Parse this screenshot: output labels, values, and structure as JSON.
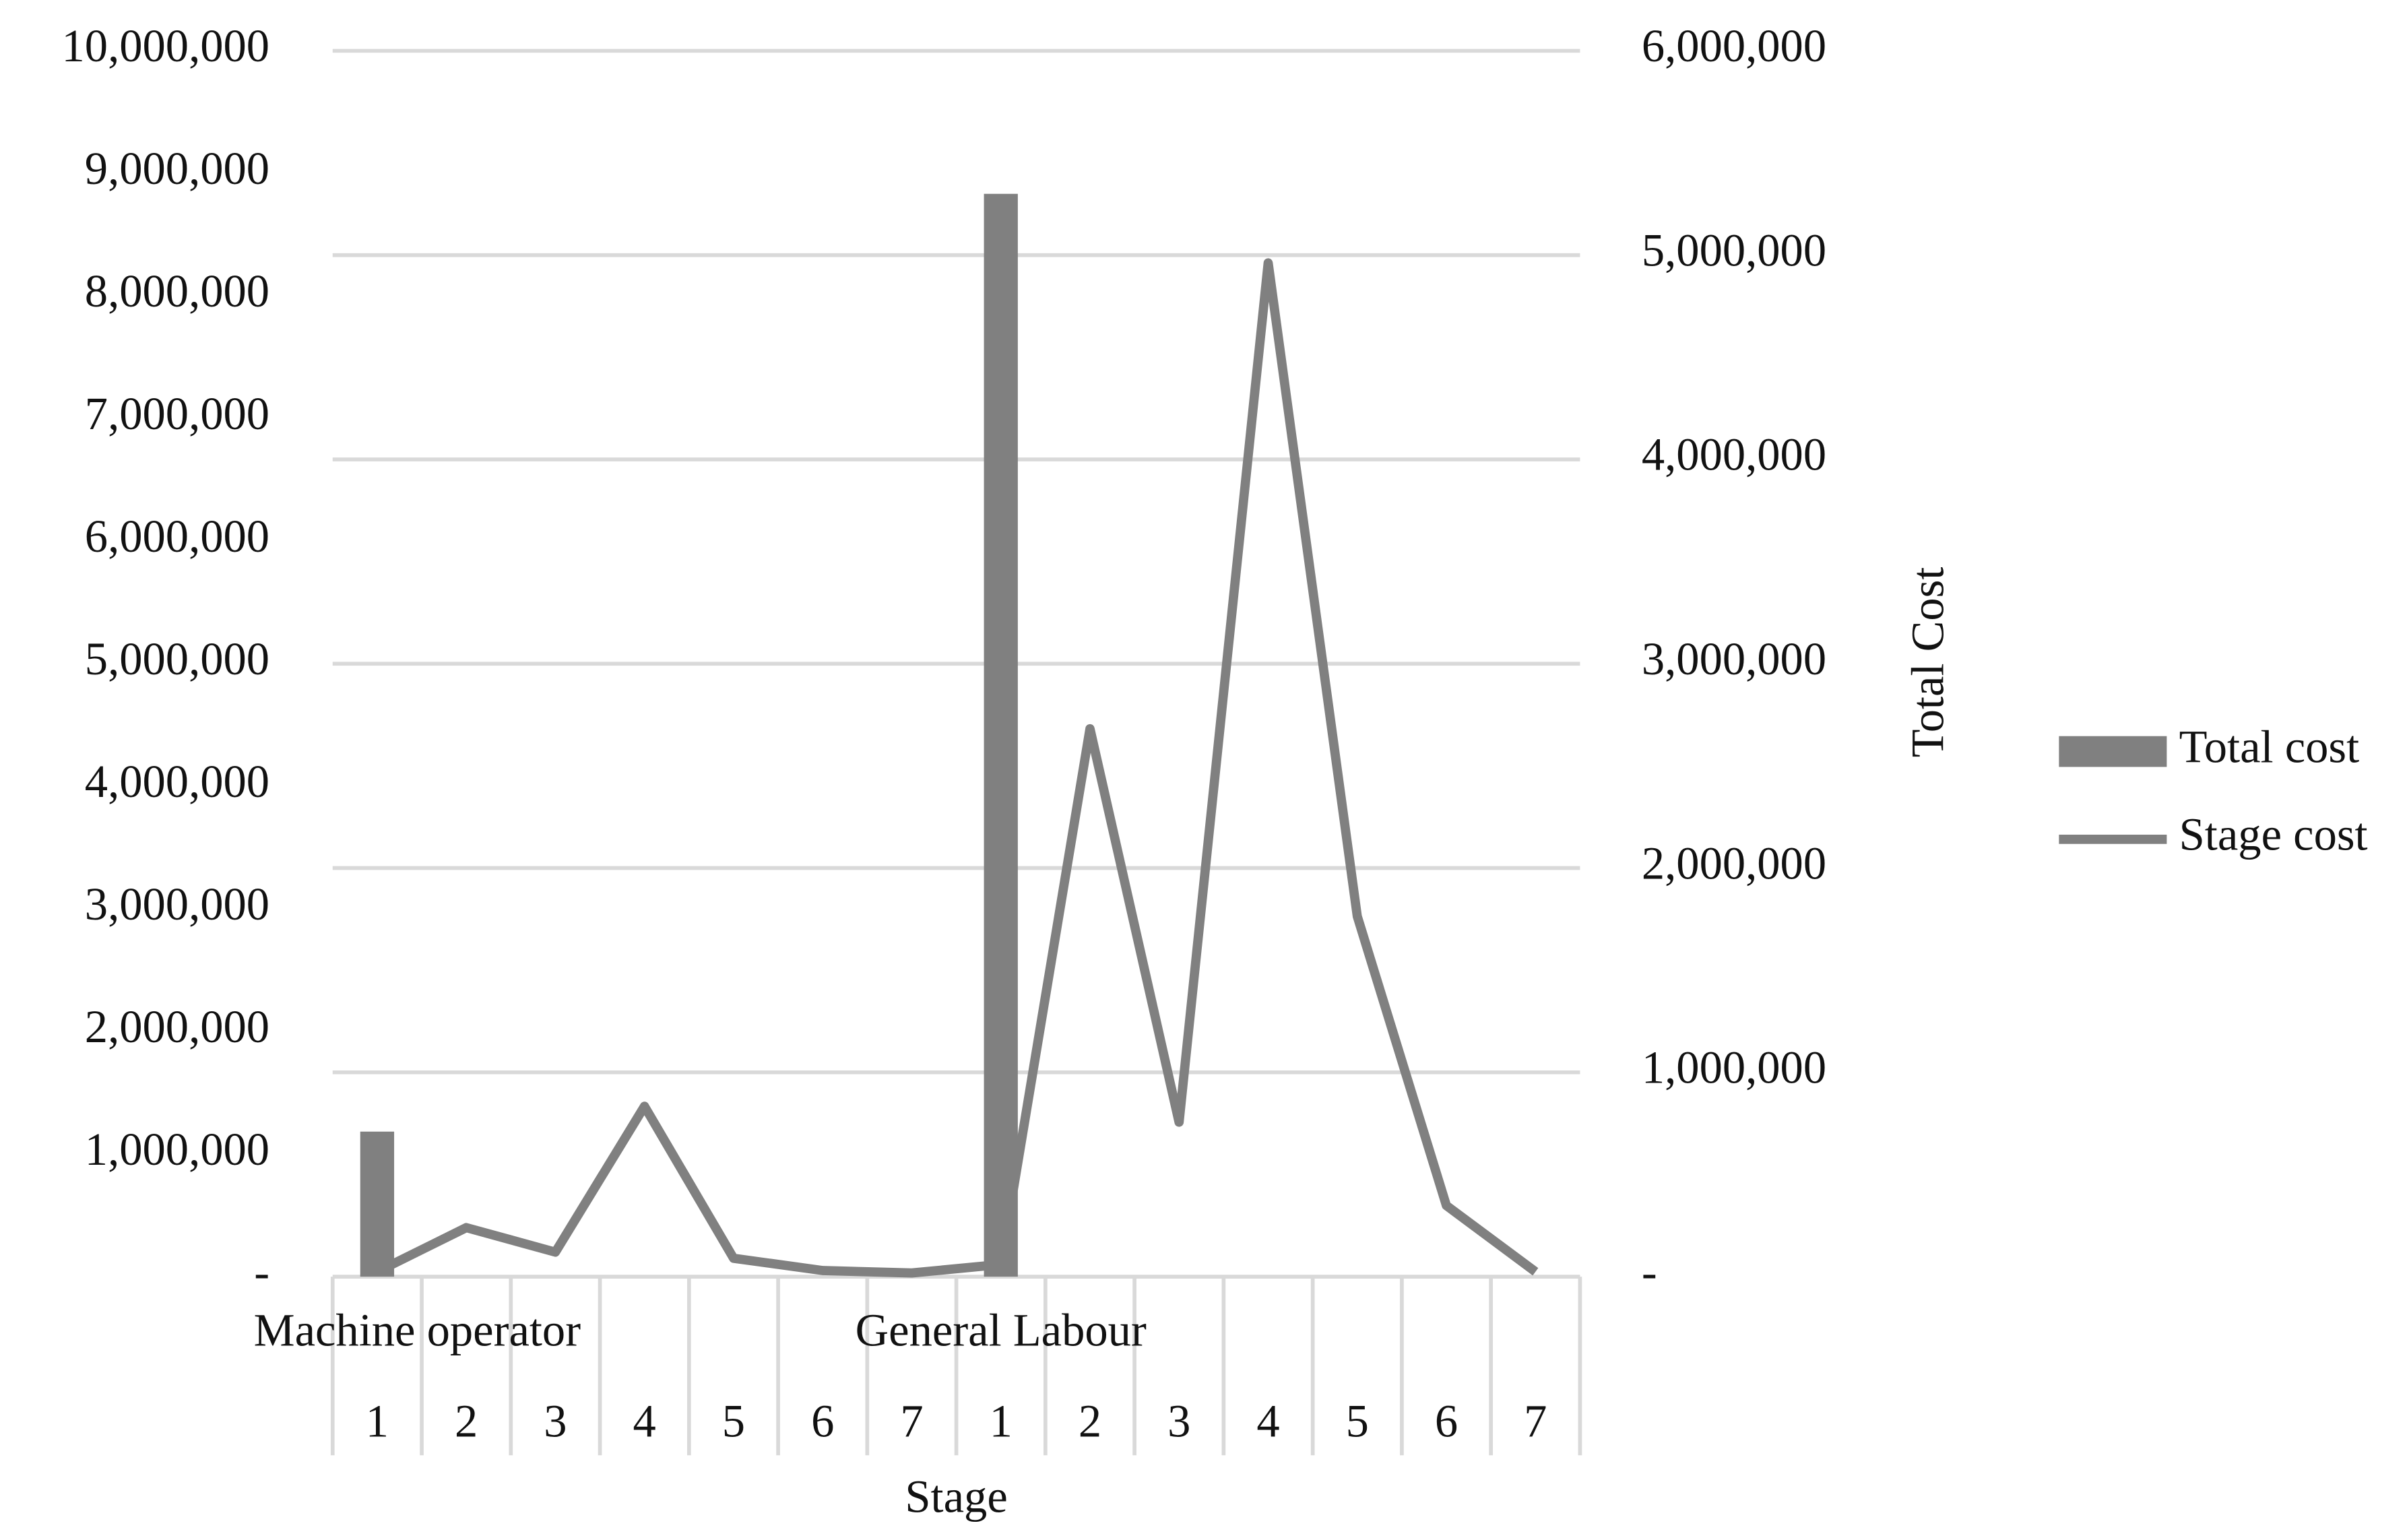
{
  "chart_data": {
    "type": "bar-line",
    "x_title": "Stage",
    "y2_title": "Total Cost",
    "groups": [
      "Machine operator",
      "General Labour"
    ],
    "categories": [
      "1",
      "2",
      "3",
      "4",
      "5",
      "6",
      "7",
      "1",
      "2",
      "3",
      "4",
      "5",
      "6",
      "7"
    ],
    "series": [
      {
        "name": "Total cost",
        "type": "bar",
        "axis": "y2",
        "color": "#808080",
        "values": [
          710000,
          null,
          null,
          null,
          null,
          null,
          null,
          5300000,
          null,
          null,
          null,
          null,
          null,
          null
        ]
      },
      {
        "name": "Stage cost",
        "type": "line",
        "axis": "y",
        "color": "#808080",
        "values": [
          40000,
          400000,
          200000,
          1390000,
          150000,
          50000,
          30000,
          100000,
          4470000,
          1260000,
          8270000,
          2940000,
          580000,
          40000
        ]
      }
    ],
    "ylim": [
      0,
      10000000
    ],
    "yticks": [
      {
        "value": 0,
        "label": "-"
      },
      {
        "value": 1000000,
        "label": "1,000,000"
      },
      {
        "value": 2000000,
        "label": "2,000,000"
      },
      {
        "value": 3000000,
        "label": "3,000,000"
      },
      {
        "value": 4000000,
        "label": "4,000,000"
      },
      {
        "value": 5000000,
        "label": "5,000,000"
      },
      {
        "value": 6000000,
        "label": "6,000,000"
      },
      {
        "value": 7000000,
        "label": "7,000,000"
      },
      {
        "value": 8000000,
        "label": "8,000,000"
      },
      {
        "value": 9000000,
        "label": "9,000,000"
      },
      {
        "value": 10000000,
        "label": "10,000,000"
      }
    ],
    "y2lim": [
      0,
      6000000
    ],
    "y2ticks": [
      {
        "value": 0,
        "label": "-"
      },
      {
        "value": 1000000,
        "label": "1,000,000"
      },
      {
        "value": 2000000,
        "label": "2,000,000"
      },
      {
        "value": 3000000,
        "label": "3,000,000"
      },
      {
        "value": 4000000,
        "label": "4,000,000"
      },
      {
        "value": 5000000,
        "label": "5,000,000"
      },
      {
        "value": 6000000,
        "label": "6,000,000"
      }
    ],
    "grid": "y2",
    "legend": "right"
  }
}
